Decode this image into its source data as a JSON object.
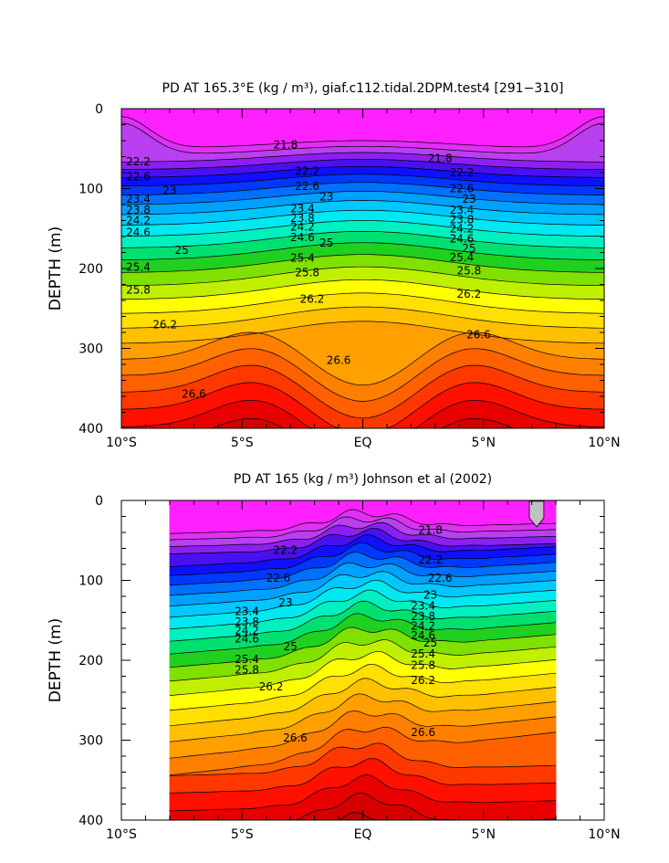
{
  "chart_data": [
    {
      "type": "contour",
      "title": "PD AT 165.3°E (kg / m³), giaf.c112.tidal.2DPM.test4 [291−310]",
      "ylabel": "DEPTH (m)",
      "xlabel": "",
      "xlim": [
        -10,
        10
      ],
      "ylim": [
        400,
        0
      ],
      "data_xlim": [
        -10,
        10
      ],
      "x_ticks": [
        -10,
        -5,
        0,
        5,
        10
      ],
      "x_tick_labels": [
        "10°S",
        "5°S",
        "EQ",
        "5°N",
        "10°N"
      ],
      "y_ticks": [
        0,
        100,
        200,
        300,
        400
      ],
      "y_tick_labels": [
        "0",
        "100",
        "200",
        "300",
        "400"
      ],
      "contour_levels": [
        21.8,
        22.0,
        22.2,
        22.4,
        22.6,
        22.8,
        23.0,
        23.2,
        23.4,
        23.6,
        23.8,
        24.0,
        24.2,
        24.4,
        24.6,
        24.8,
        25.0,
        25.2,
        25.4,
        25.6,
        25.8,
        26.0,
        26.2,
        26.4,
        26.6,
        26.8
      ],
      "contour_labels": [
        {
          "text": "21.8",
          "x": -3.2,
          "depth": 45
        },
        {
          "text": "21.8",
          "x": 3.2,
          "depth": 62
        },
        {
          "text": "22.2",
          "x": -9.3,
          "depth": 66
        },
        {
          "text": "22.2",
          "x": -2.3,
          "depth": 78
        },
        {
          "text": "22.2",
          "x": 4.1,
          "depth": 80
        },
        {
          "text": "22.6",
          "x": -9.3,
          "depth": 85
        },
        {
          "text": "22.6",
          "x": -2.3,
          "depth": 97
        },
        {
          "text": "22.6",
          "x": 4.1,
          "depth": 100
        },
        {
          "text": "23",
          "x": -8.0,
          "depth": 102
        },
        {
          "text": "23",
          "x": -1.5,
          "depth": 110
        },
        {
          "text": "23",
          "x": 4.4,
          "depth": 113
        },
        {
          "text": "23.4",
          "x": -9.3,
          "depth": 113
        },
        {
          "text": "23.4",
          "x": -2.5,
          "depth": 125
        },
        {
          "text": "23.4",
          "x": 4.1,
          "depth": 127
        },
        {
          "text": "23.8",
          "x": -9.3,
          "depth": 127
        },
        {
          "text": "23.8",
          "x": -2.5,
          "depth": 137
        },
        {
          "text": "23.8",
          "x": 4.1,
          "depth": 139
        },
        {
          "text": "24.2",
          "x": -9.3,
          "depth": 140
        },
        {
          "text": "24.2",
          "x": -2.5,
          "depth": 148
        },
        {
          "text": "24.2",
          "x": 4.1,
          "depth": 150
        },
        {
          "text": "24.6",
          "x": -9.3,
          "depth": 155
        },
        {
          "text": "24.6",
          "x": -2.5,
          "depth": 161
        },
        {
          "text": "24.6",
          "x": 4.1,
          "depth": 163
        },
        {
          "text": "25",
          "x": -7.5,
          "depth": 177
        },
        {
          "text": "25",
          "x": -1.5,
          "depth": 168
        },
        {
          "text": "25",
          "x": 4.4,
          "depth": 175
        },
        {
          "text": "25.4",
          "x": -9.3,
          "depth": 198
        },
        {
          "text": "25.4",
          "x": -2.5,
          "depth": 187
        },
        {
          "text": "25.4",
          "x": 4.1,
          "depth": 186
        },
        {
          "text": "25.8",
          "x": -9.3,
          "depth": 227
        },
        {
          "text": "25.8",
          "x": -2.3,
          "depth": 205
        },
        {
          "text": "25.8",
          "x": 4.4,
          "depth": 203
        },
        {
          "text": "26.2",
          "x": -8.2,
          "depth": 270
        },
        {
          "text": "26.2",
          "x": -2.1,
          "depth": 238
        },
        {
          "text": "26.2",
          "x": 4.4,
          "depth": 232
        },
        {
          "text": "26.6",
          "x": -7.0,
          "depth": 357
        },
        {
          "text": "26.6",
          "x": -1.0,
          "depth": 315
        },
        {
          "text": "26.6",
          "x": 4.8,
          "depth": 283
        }
      ]
    },
    {
      "type": "contour",
      "title": "PD AT 165 (kg / m³) Johnson et al (2002)",
      "ylabel": "DEPTH (m)",
      "xlabel": "",
      "xlim": [
        -10,
        10
      ],
      "ylim": [
        400,
        0
      ],
      "data_xlim": [
        -8,
        8
      ],
      "x_ticks": [
        -10,
        -5,
        0,
        5,
        10
      ],
      "x_tick_labels": [
        "10°S",
        "5°S",
        "EQ",
        "5°N",
        "10°N"
      ],
      "y_ticks": [
        0,
        100,
        200,
        300,
        400
      ],
      "y_tick_labels": [
        "0",
        "100",
        "200",
        "300",
        "400"
      ],
      "contour_levels": [
        21.8,
        22.0,
        22.2,
        22.4,
        22.6,
        22.8,
        23.0,
        23.2,
        23.4,
        23.6,
        23.8,
        24.0,
        24.2,
        24.4,
        24.6,
        24.8,
        25.0,
        25.2,
        25.4,
        25.6,
        25.8,
        26.0,
        26.2,
        26.4,
        26.6,
        26.8
      ],
      "contour_labels": [
        {
          "text": "21.8",
          "x": 2.8,
          "depth": 37
        },
        {
          "text": "22.2",
          "x": -3.2,
          "depth": 62
        },
        {
          "text": "22.2",
          "x": 2.8,
          "depth": 74
        },
        {
          "text": "22.6",
          "x": -3.5,
          "depth": 97
        },
        {
          "text": "22.6",
          "x": 3.2,
          "depth": 97
        },
        {
          "text": "23",
          "x": -3.2,
          "depth": 128
        },
        {
          "text": "23",
          "x": 2.8,
          "depth": 118
        },
        {
          "text": "23.4",
          "x": -4.8,
          "depth": 139
        },
        {
          "text": "23.4",
          "x": 2.5,
          "depth": 132
        },
        {
          "text": "23.8",
          "x": -4.8,
          "depth": 152
        },
        {
          "text": "23.8",
          "x": 2.5,
          "depth": 145
        },
        {
          "text": "24.2",
          "x": -4.8,
          "depth": 163
        },
        {
          "text": "24.2",
          "x": 2.5,
          "depth": 157
        },
        {
          "text": "24.6",
          "x": -4.8,
          "depth": 173
        },
        {
          "text": "24.6",
          "x": 2.5,
          "depth": 169
        },
        {
          "text": "25",
          "x": -3.0,
          "depth": 183
        },
        {
          "text": "25",
          "x": 2.8,
          "depth": 178
        },
        {
          "text": "25.4",
          "x": -4.8,
          "depth": 199
        },
        {
          "text": "25.4",
          "x": 2.5,
          "depth": 192
        },
        {
          "text": "25.8",
          "x": -4.8,
          "depth": 212
        },
        {
          "text": "25.8",
          "x": 2.5,
          "depth": 206
        },
        {
          "text": "26.2",
          "x": -3.8,
          "depth": 233
        },
        {
          "text": "26.2",
          "x": 2.5,
          "depth": 225
        },
        {
          "text": "26.6",
          "x": -2.8,
          "depth": 297
        },
        {
          "text": "26.6",
          "x": 2.5,
          "depth": 290
        }
      ]
    }
  ]
}
